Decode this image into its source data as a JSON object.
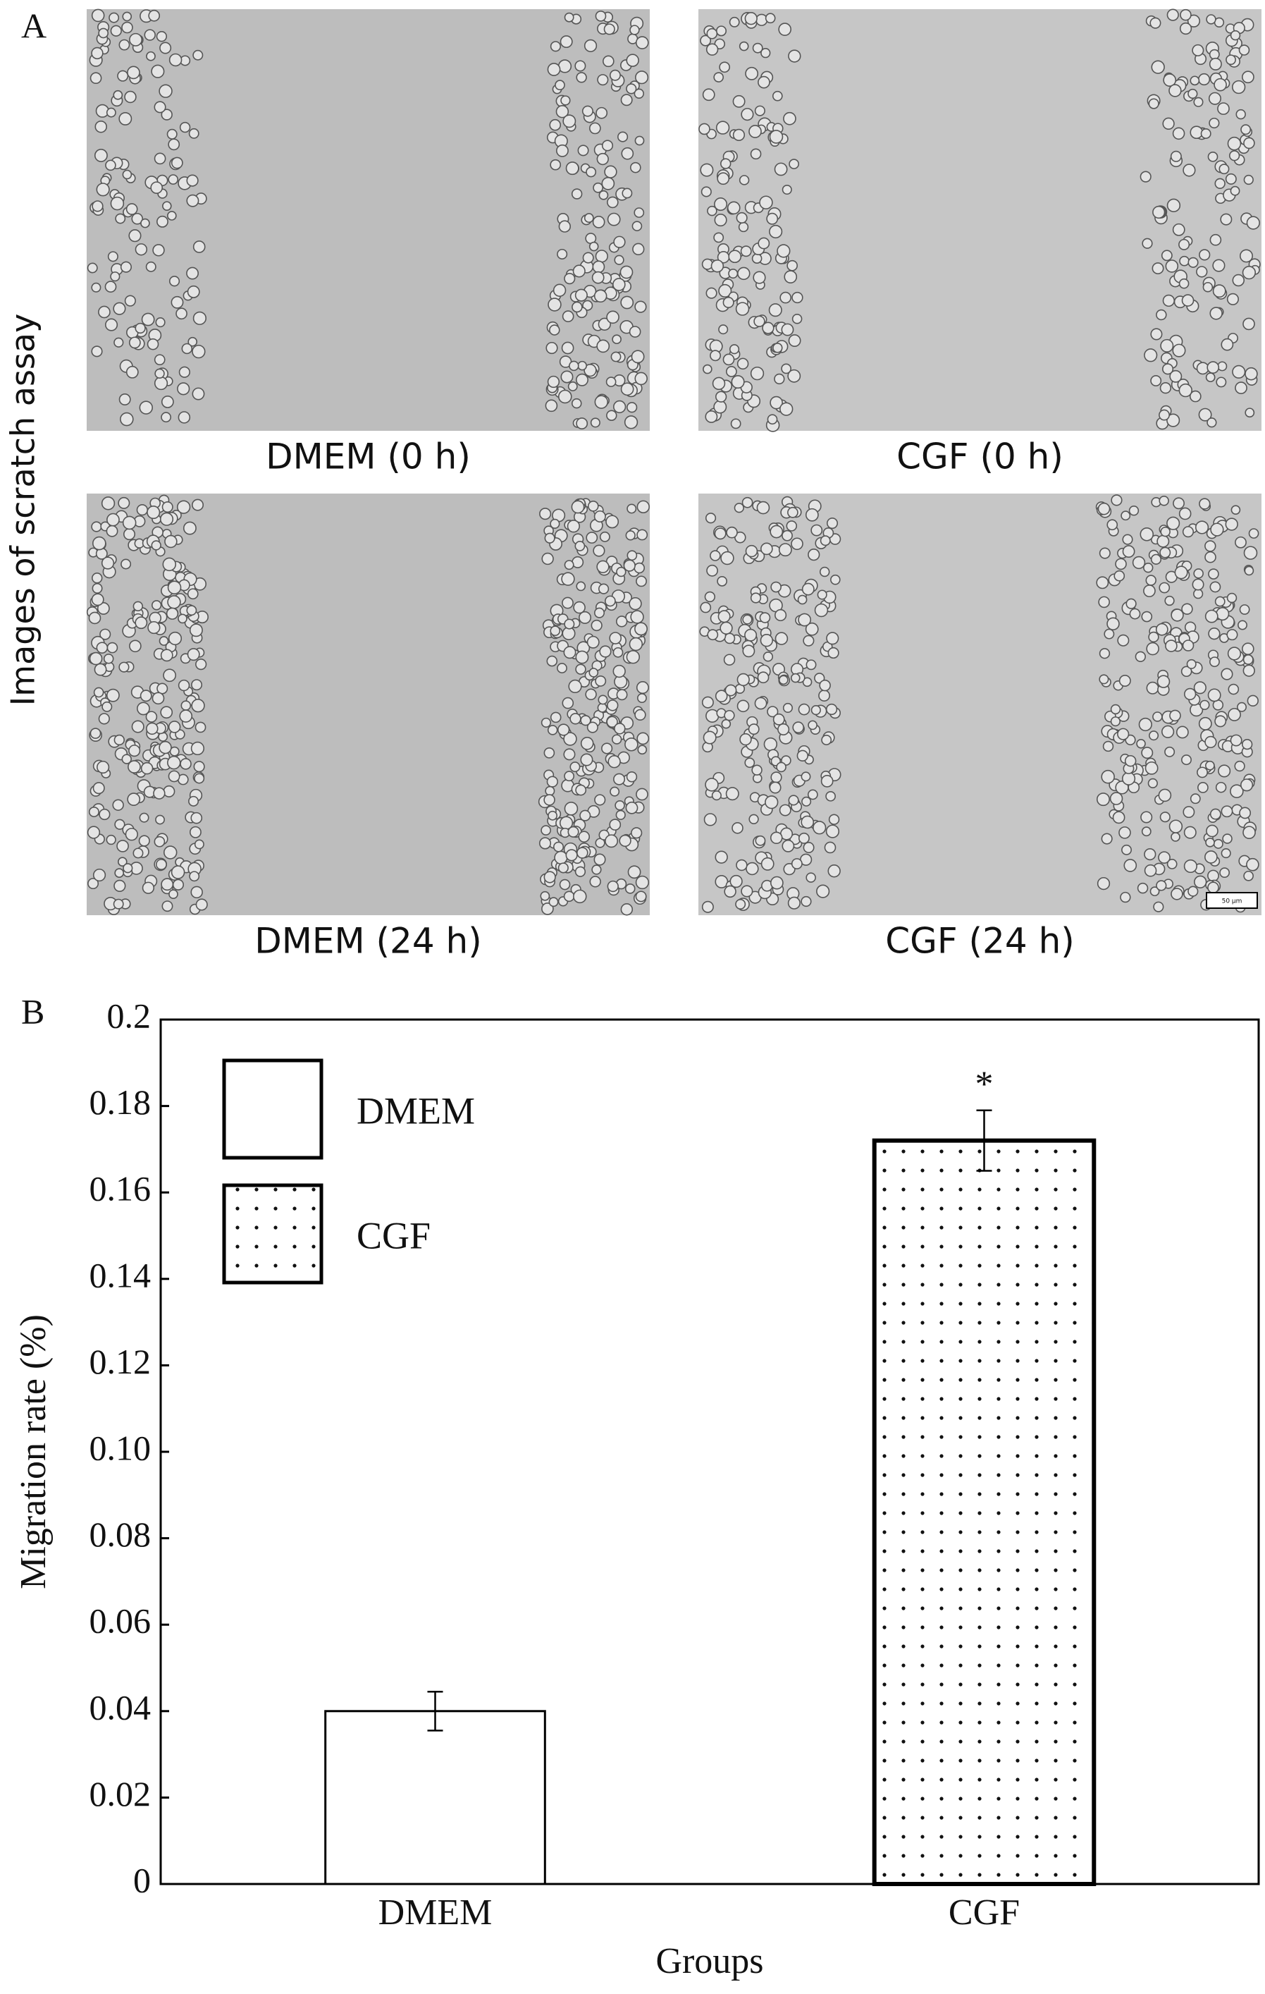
{
  "panel_a": {
    "label": "A",
    "ylabel": "Images of scratch assay",
    "images": [
      {
        "caption": "DMEM (0 h)"
      },
      {
        "caption": "CGF (0 h)"
      },
      {
        "caption": "DMEM (24 h)"
      },
      {
        "caption": "CGF (24 h)"
      }
    ],
    "scale_bar": "50 µm"
  },
  "panel_b": {
    "label": "B"
  },
  "chart_data": {
    "type": "bar",
    "xlabel": "Groups",
    "ylabel": "Migration rate (%)",
    "categories": [
      "DMEM",
      "CGF"
    ],
    "series": [
      {
        "name": "DMEM",
        "pattern": "none",
        "values": [
          0.04,
          null
        ],
        "errors": [
          0.0045,
          null
        ]
      },
      {
        "name": "CGF",
        "pattern": "dots",
        "values": [
          null,
          0.172
        ],
        "errors": [
          null,
          0.007
        ]
      }
    ],
    "annotations": [
      {
        "text": "*",
        "category": 1
      }
    ],
    "ylim": [
      0,
      0.2
    ],
    "yticks": [
      0,
      0.02,
      0.04,
      0.06,
      0.08,
      {
        "value": 0.1,
        "label": "0.10"
      },
      0.12,
      0.14,
      0.16,
      0.18,
      0.2
    ],
    "legend": "upper left",
    "grid": false
  }
}
